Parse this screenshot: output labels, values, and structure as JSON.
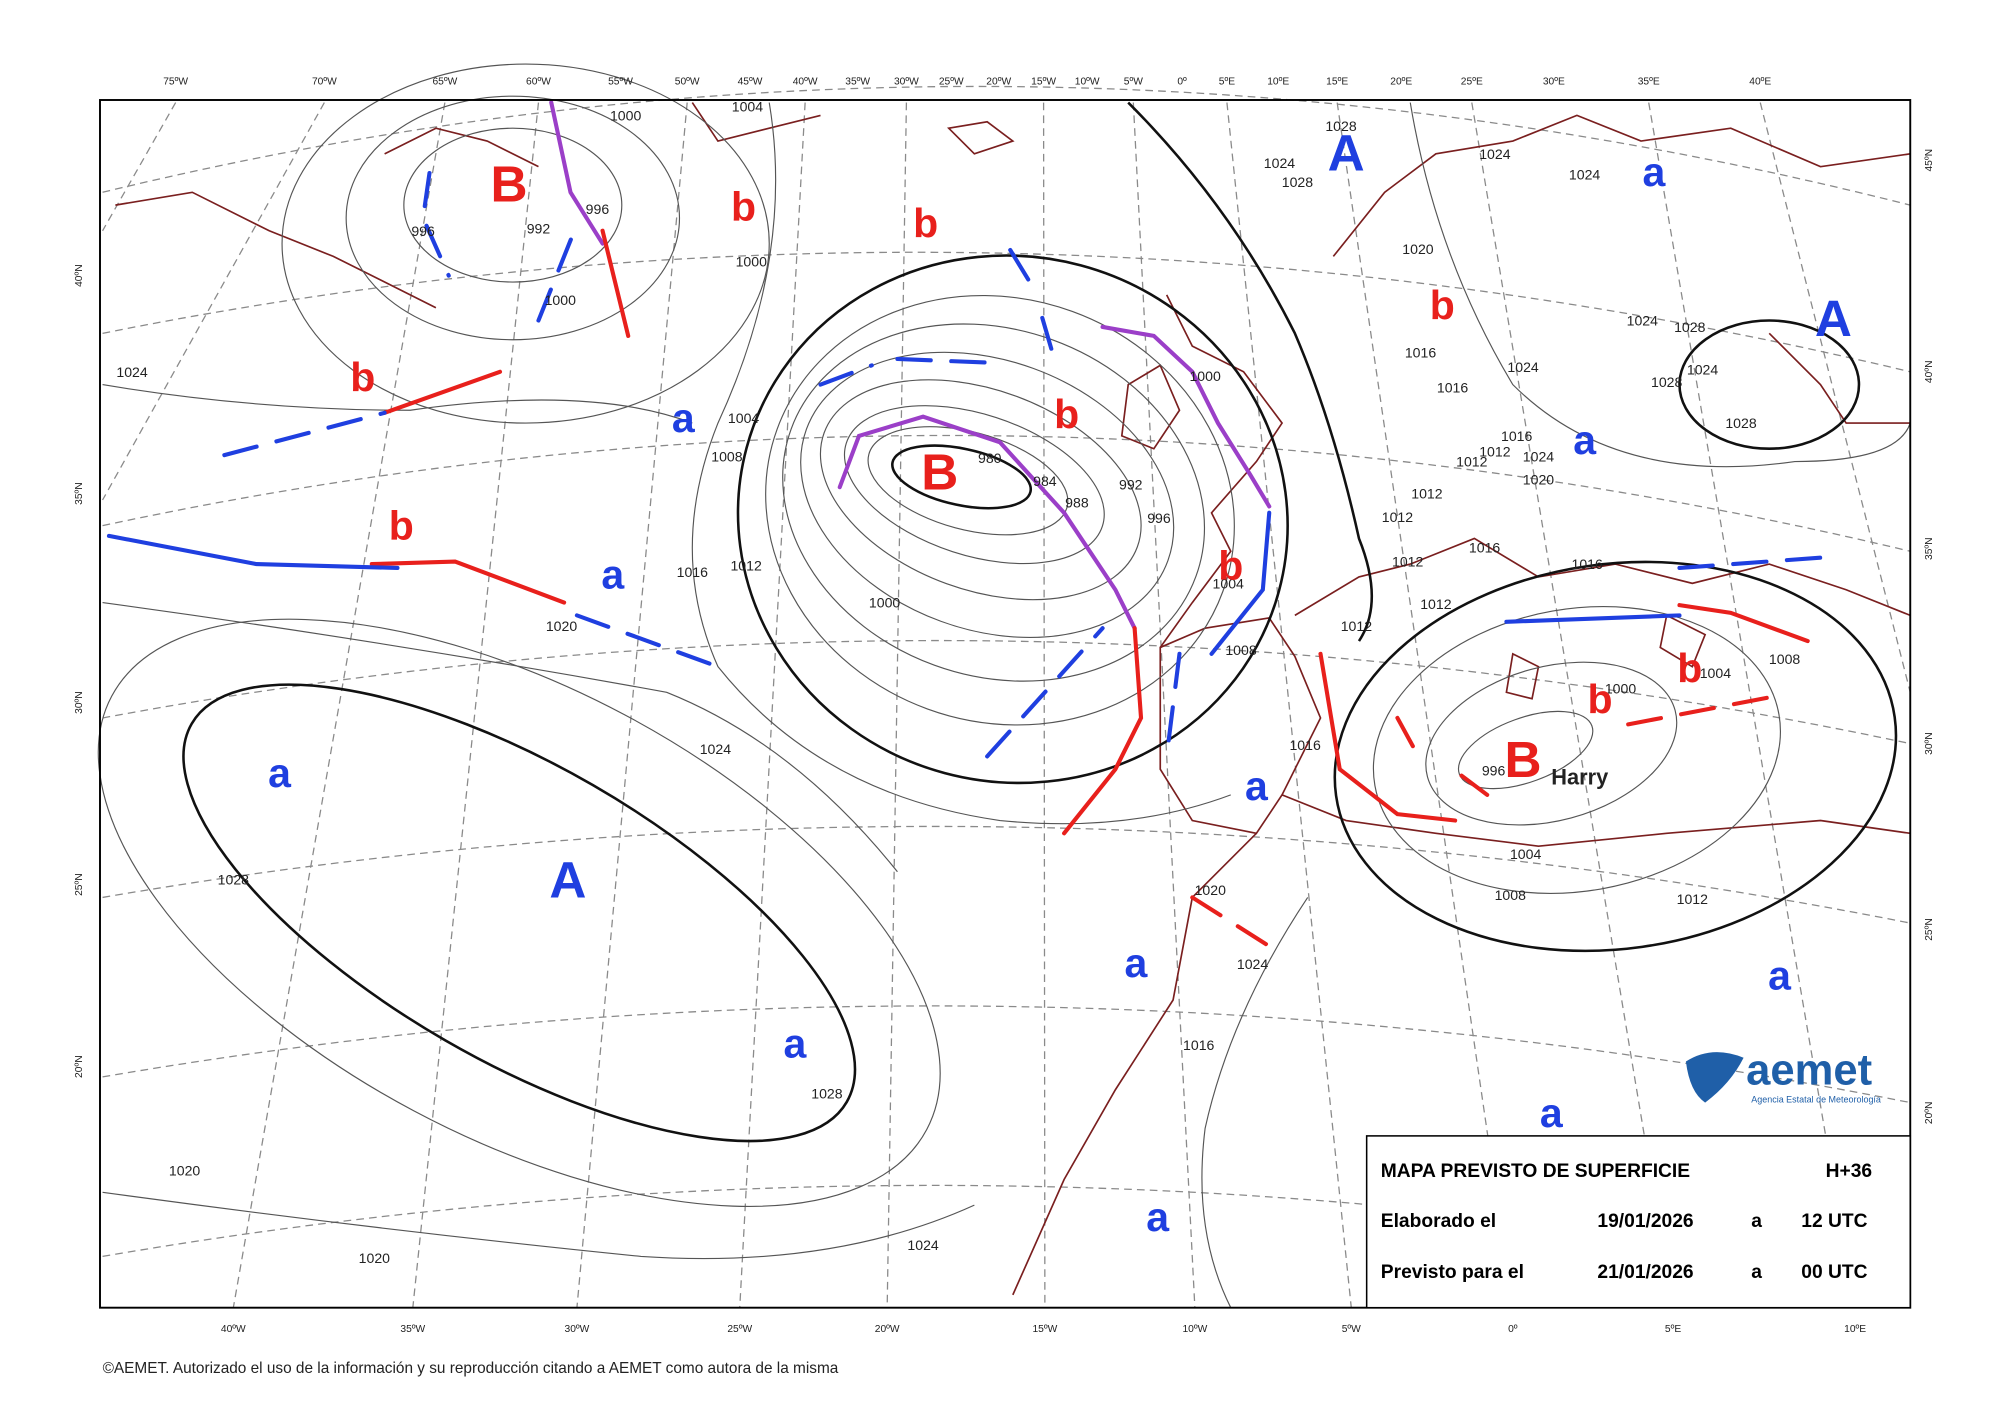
{
  "longitude_labels_top": [
    "75ºW",
    "70ºW",
    "65ºW",
    "60ºW",
    "55ºW",
    "50ºW",
    "45ºW",
    "40ºW",
    "35ºW",
    "30ºW",
    "25ºW",
    "20ºW",
    "15ºW",
    "10ºW",
    "5ºW",
    "0º",
    "5ºE",
    "10ºE",
    "15ºE",
    "20ºE",
    "25ºE",
    "30ºE",
    "35ºE",
    "40ºE"
  ],
  "longitude_labels_bottom": [
    "40ºW",
    "35ºW",
    "30ºW",
    "25ºW",
    "20ºW",
    "15ºW",
    "10ºW",
    "5ºW",
    "0º",
    "5ºE",
    "10ºE"
  ],
  "latitude_labels_left": [
    "40ºN",
    "35ºN",
    "30ºN",
    "25ºN",
    "20ºN"
  ],
  "latitude_labels_right": [
    "45ºN",
    "40ºN",
    "35ºN",
    "30ºN",
    "25ºN",
    "20ºN"
  ],
  "isobar_labels": [
    1000,
    1004,
    996,
    992,
    996,
    1000,
    1000,
    1024,
    1004,
    1008,
    1016,
    1012,
    1020,
    1024,
    1028,
    1028,
    1020,
    1020,
    1024,
    980,
    984,
    988,
    992,
    996,
    1000,
    1000,
    1004,
    1008,
    1012,
    1016,
    1020,
    1024,
    1016,
    1028,
    1028,
    1024,
    1020,
    1016,
    1016,
    1024,
    1028,
    1024,
    1028,
    1024,
    1028,
    1012,
    1012,
    1016,
    1024,
    1020,
    1012,
    1012,
    1012,
    1012,
    1016,
    1016,
    1004,
    1008,
    1000,
    996,
    1004,
    1008,
    1012,
    1024,
    1024
  ],
  "pressure_centers": [
    "B",
    "b",
    "b",
    "b",
    "a",
    "b",
    "B",
    "b",
    "a",
    "b",
    "a",
    "A",
    "a",
    "a",
    "a",
    "a",
    "A",
    "a",
    "b",
    "A",
    "a",
    "b",
    "b",
    "B",
    "a",
    "a"
  ],
  "storm_name": "Harry",
  "info_box": {
    "title": "MAPA PREVISTO DE SUPERFICIE",
    "forecast_hour": "H+36",
    "issued_label": "Elaborado el",
    "issued_date": "19/01/2026",
    "issued_at": "a",
    "issued_time": "12 UTC",
    "valid_label": "Previsto para el",
    "valid_date": "21/01/2026",
    "valid_at": "a",
    "valid_time": "00 UTC"
  },
  "logo": {
    "name": "aemet",
    "agency": "Agencia Estatal de Meteorología"
  },
  "footer": "©AEMET. Autorizado el uso de la información y su reproducción citando a AEMET como autora de la misma"
}
